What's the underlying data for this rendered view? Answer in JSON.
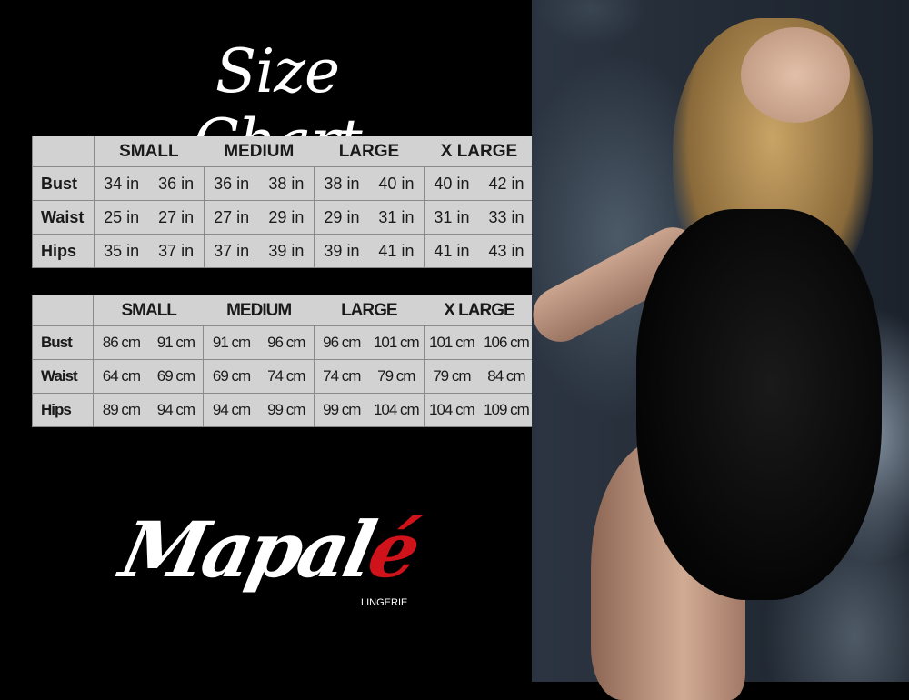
{
  "title": "Size Chart",
  "sizes": [
    "SMALL",
    "MEDIUM",
    "LARGE",
    "X LARGE"
  ],
  "inches": [
    {
      "label": "Bust",
      "values": [
        "34 in",
        "36 in",
        "36 in",
        "38 in",
        "38 in",
        "40 in",
        "40 in",
        "42 in"
      ]
    },
    {
      "label": "Waist",
      "values": [
        "25 in",
        "27 in",
        "27 in",
        "29 in",
        "29 in",
        "31 in",
        "31 in",
        "33 in"
      ]
    },
    {
      "label": "Hips",
      "values": [
        "35 in",
        "37 in",
        "37 in",
        "39 in",
        "39 in",
        "41 in",
        "41 in",
        "43 in"
      ]
    }
  ],
  "centimeters": [
    {
      "label": "Bust",
      "values": [
        "86 cm",
        "91 cm",
        "91 cm",
        "96 cm",
        "96 cm",
        "101 cm",
        "101 cm",
        "106 cm"
      ]
    },
    {
      "label": "Waist",
      "values": [
        "64 cm",
        "69 cm",
        "69 cm",
        "74 cm",
        "74 cm",
        "79 cm",
        "79 cm",
        "84 cm"
      ]
    },
    {
      "label": "Hips",
      "values": [
        "89 cm",
        "94 cm",
        "94 cm",
        "99 cm",
        "99 cm",
        "104 cm",
        "104 cm",
        "109 cm"
      ]
    }
  ],
  "brand": {
    "name_main": "Mapal",
    "name_accent": "é",
    "subtitle": "LINGERIE",
    "accent_color": "#d0121b"
  }
}
